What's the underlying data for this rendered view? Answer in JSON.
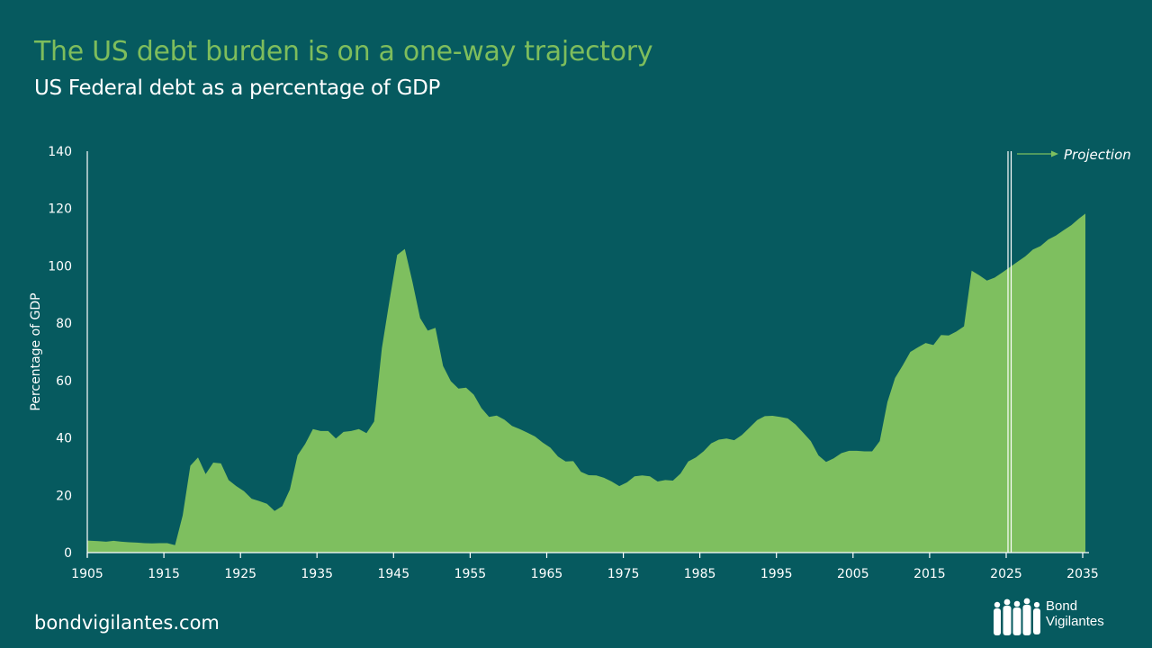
{
  "header": {
    "title": "The US debt burden is on a one-way trajectory",
    "subtitle": "US Federal debt as a percentage of GDP"
  },
  "footer": {
    "url": "bondvigilantes.com",
    "logo_line1": "Bond",
    "logo_line2": "Vigilantes"
  },
  "colors": {
    "background": "#065a5f",
    "area": "#7ebf5f",
    "title": "#7ebd5c",
    "axis": "#ffffff"
  },
  "chart_data": {
    "type": "area",
    "title": "US Federal debt as a percentage of GDP",
    "xlabel": "",
    "ylabel": "Percentage of GDP",
    "xlim": [
      1905,
      2035
    ],
    "ylim": [
      0,
      140
    ],
    "grid": false,
    "x_ticks": [
      "1905",
      "1915",
      "1925",
      "1935",
      "1945",
      "1955",
      "1965",
      "1975",
      "1985",
      "1995",
      "2005",
      "2015",
      "2025",
      "2035"
    ],
    "y_ticks": [
      "0",
      "20",
      "40",
      "60",
      "80",
      "100",
      "120",
      "140"
    ],
    "annotation": {
      "label": "Projection",
      "start_year": 2025
    },
    "series": [
      {
        "name": "US Federal debt (% of GDP)",
        "start_year": 1905,
        "values": [
          4.2,
          4.0,
          3.8,
          4.1,
          3.8,
          3.6,
          3.5,
          3.3,
          3.2,
          3.3,
          3.3,
          2.6,
          13.0,
          30.3,
          33.2,
          27.4,
          31.4,
          31.1,
          25.3,
          23.2,
          21.4,
          18.8,
          18.0,
          17.0,
          14.5,
          16.2,
          22.0,
          33.9,
          37.9,
          43.1,
          42.4,
          42.4,
          39.8,
          42.1,
          42.4,
          43.1,
          41.7,
          45.7,
          71.3,
          88.0,
          103.8,
          105.9,
          94.4,
          81.8,
          77.4,
          78.4,
          65.1,
          59.8,
          57.2,
          57.5,
          55.1,
          50.4,
          47.3,
          47.8,
          46.4,
          44.2,
          43.1,
          41.8,
          40.5,
          38.4,
          36.6,
          33.5,
          31.8,
          31.9,
          28.2,
          27.0,
          26.9,
          26.1,
          24.8,
          23.2,
          24.5,
          26.6,
          26.9,
          26.6,
          24.8,
          25.3,
          25.1,
          27.6,
          31.8,
          33.2,
          35.3,
          38.1,
          39.4,
          39.8,
          39.2,
          41.0,
          43.6,
          46.2,
          47.6,
          47.7,
          47.3,
          46.8,
          44.7,
          41.8,
          38.9,
          33.9,
          31.6,
          32.9,
          34.7,
          35.5,
          35.5,
          35.3,
          35.3,
          38.9,
          52.5,
          60.9,
          65.3,
          70.0,
          71.6,
          73.1,
          72.4,
          75.9,
          75.7,
          77.1,
          78.9,
          98.3,
          96.7,
          94.9,
          95.9,
          97.7,
          99.6,
          101.5,
          103.3,
          105.7,
          106.9,
          109.2,
          110.6,
          112.4,
          114.2,
          116.5,
          118.2
        ]
      }
    ]
  }
}
